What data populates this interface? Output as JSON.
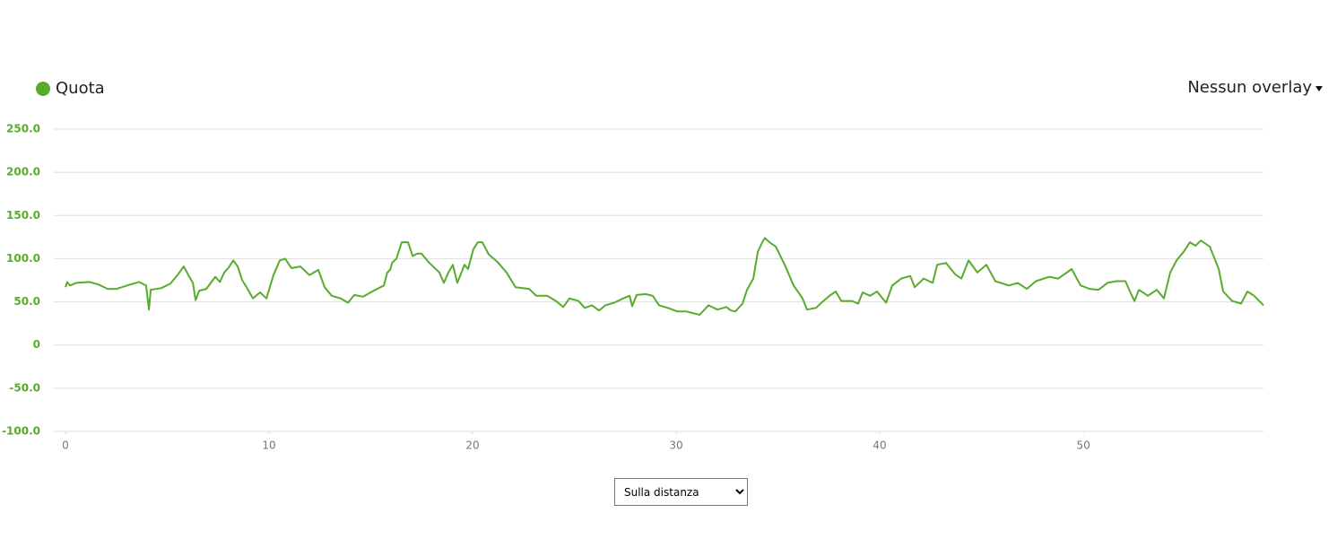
{
  "chart_data": {
    "type": "line",
    "legend": "Quota",
    "overlay_menu": "Nessun overlay",
    "mode_select": "Sulla distanza",
    "series": [
      {
        "name": "Quota",
        "color": "#58ab2c",
        "x": [
          0,
          0.09,
          0.22,
          0.53,
          1.19,
          1.63,
          2.07,
          2.51,
          3.17,
          3.61,
          3.96,
          4.1,
          4.19,
          4.71,
          5.15,
          5.5,
          5.81,
          6.04,
          6.26,
          6.39,
          6.57,
          6.92,
          7.36,
          7.58,
          7.8,
          8.02,
          8.24,
          8.46,
          8.68,
          8.9,
          9.21,
          9.56,
          9.87,
          10.22,
          10.53,
          10.79,
          11.1,
          11.54,
          11.98,
          12.42,
          12.73,
          13.08,
          13.52,
          13.88,
          14.19,
          14.63,
          15.07,
          15.64,
          15.81,
          15.95,
          16.04,
          16.26,
          16.52,
          16.83,
          17.05,
          17.27,
          17.49,
          17.84,
          18.37,
          18.59,
          18.81,
          19.03,
          19.25,
          19.6,
          19.78,
          20.04,
          20.26,
          20.48,
          20.79,
          21.23,
          21.67,
          22.11,
          22.78,
          23.13,
          23.66,
          24.1,
          24.45,
          24.76,
          25.2,
          25.51,
          25.86,
          26.21,
          26.52,
          26.96,
          27.4,
          27.71,
          27.84,
          28.06,
          28.5,
          28.85,
          29.16,
          29.6,
          30.04,
          30.48,
          31.15,
          31.59,
          32.03,
          32.47,
          32.69,
          32.91,
          33.26,
          33.48,
          33.79,
          34.01,
          34.23,
          34.36,
          34.58,
          34.89,
          35.33,
          35.77,
          36.21,
          36.43,
          36.87,
          37.09,
          37.53,
          37.84,
          38.11,
          38.63,
          38.94,
          39.16,
          39.52,
          39.87,
          40.31,
          40.62,
          41.06,
          41.5,
          41.72,
          42.16,
          42.6,
          42.82,
          43.26,
          43.7,
          44.01,
          44.36,
          44.8,
          45.24,
          45.68,
          46.34,
          46.78,
          47.22,
          47.67,
          48.33,
          48.77,
          49.43,
          49.87,
          50.31,
          50.75,
          51.19,
          51.63,
          52.07,
          52.29,
          52.51,
          52.73,
          53.17,
          53.61,
          53.96,
          54.27,
          54.58,
          54.93,
          55.24,
          55.51,
          55.77,
          56.21,
          56.65,
          56.87,
          57.31,
          57.75,
          58.06,
          58.39,
          58.85
        ],
        "values": [
          67,
          73,
          69,
          72,
          73,
          70,
          65,
          65,
          70,
          73,
          69,
          41,
          64,
          66,
          71,
          81,
          91,
          81,
          72,
          52,
          63,
          65,
          79,
          73,
          84,
          90,
          98,
          91,
          75,
          67,
          54,
          61,
          54,
          81,
          98,
          100,
          89,
          91,
          81,
          87,
          67,
          57,
          54,
          49,
          58,
          56,
          62,
          69,
          84,
          87,
          95,
          100,
          119,
          119,
          103,
          106,
          106,
          96,
          84,
          72,
          84,
          93,
          72,
          93,
          88,
          111,
          119,
          119,
          105,
          96,
          84,
          67,
          65,
          57,
          57,
          51,
          44,
          54,
          51,
          43,
          46,
          40,
          46,
          49,
          54,
          57,
          45,
          58,
          59,
          57,
          46,
          43,
          39,
          39,
          35,
          46,
          41,
          44,
          40,
          39,
          48,
          64,
          77,
          108,
          119,
          124,
          119,
          114,
          93,
          69,
          54,
          41,
          43,
          48,
          57,
          62,
          51,
          51,
          48,
          61,
          57,
          62,
          49,
          69,
          77,
          80,
          67,
          77,
          72,
          93,
          95,
          82,
          77,
          98,
          84,
          93,
          74,
          69,
          72,
          65,
          74,
          79,
          77,
          88,
          69,
          65,
          64,
          72,
          74,
          74,
          62,
          51,
          64,
          57,
          64,
          54,
          84,
          98,
          108,
          119,
          115,
          121,
          114,
          88,
          62,
          51,
          48,
          62,
          57,
          46
        ]
      }
    ],
    "xlim": [
      0,
      58.85
    ],
    "ylim": [
      -100,
      250
    ],
    "xticks": [
      0,
      10,
      20,
      30,
      40,
      50
    ],
    "yticks": [
      {
        "value": 250,
        "label": "250.0"
      },
      {
        "value": 200,
        "label": "200.0"
      },
      {
        "value": 150,
        "label": "150.0"
      },
      {
        "value": 100,
        "label": "100.0"
      },
      {
        "value": 50,
        "label": "50.0"
      },
      0,
      {
        "value": -50,
        "label": "-50.0"
      },
      {
        "value": -100,
        "label": "-100.0"
      }
    ],
    "grid": true
  }
}
